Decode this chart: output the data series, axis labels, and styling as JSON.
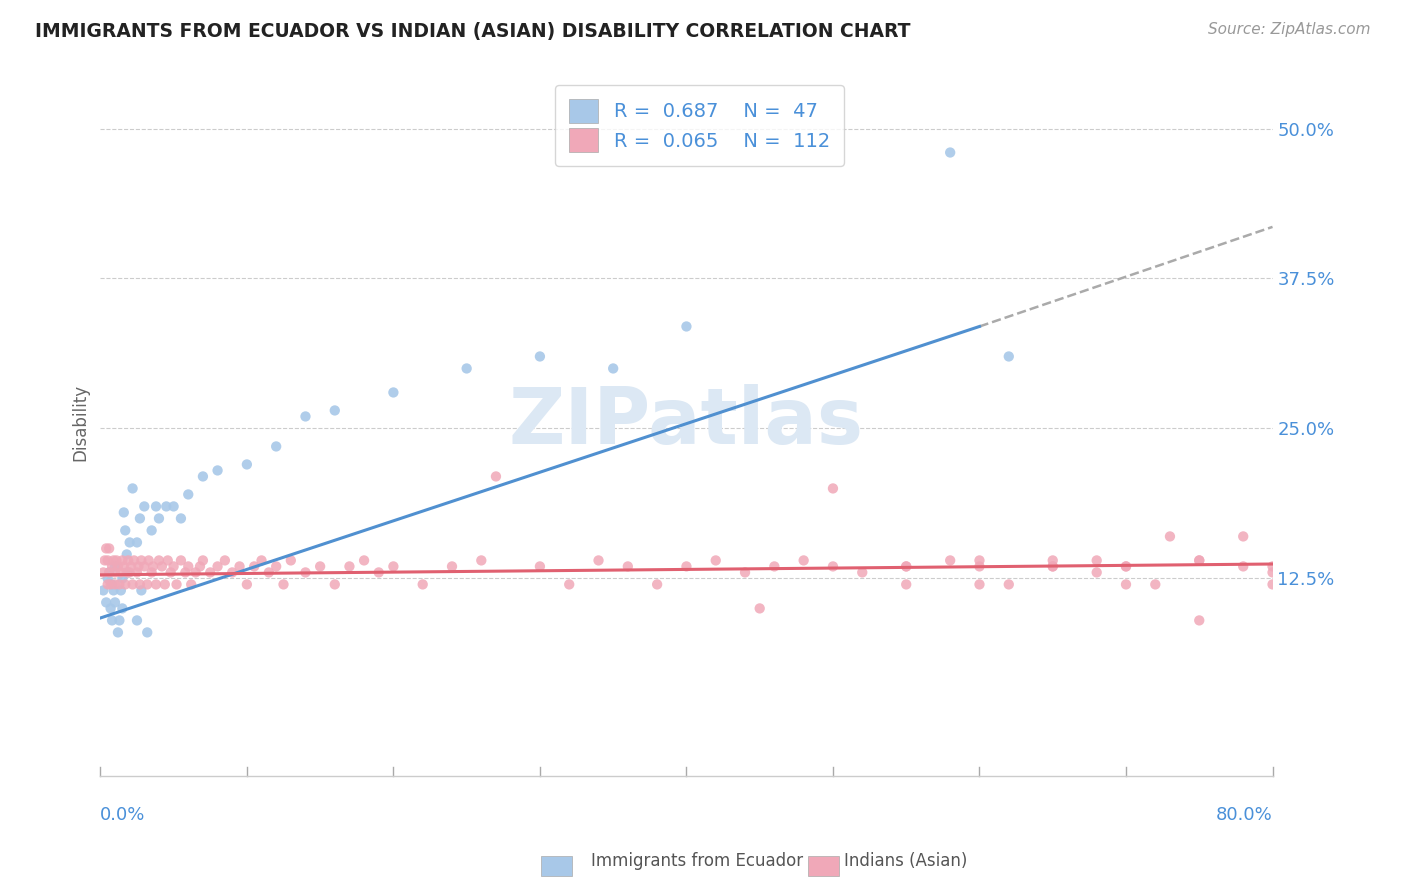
{
  "title": "IMMIGRANTS FROM ECUADOR VS INDIAN (ASIAN) DISABILITY CORRELATION CHART",
  "source_text": "Source: ZipAtlas.com",
  "ylabel": "Disability",
  "xlim": [
    0.0,
    0.8
  ],
  "ylim": [
    -0.04,
    0.55
  ],
  "yticks": [
    0.125,
    0.25,
    0.375,
    0.5
  ],
  "ytick_labels": [
    "12.5%",
    "25.0%",
    "37.5%",
    "50.0%"
  ],
  "color_blue": "#a8c8e8",
  "color_pink": "#f0a8b8",
  "color_blue_line": "#5090d0",
  "color_pink_line": "#e06070",
  "color_dash": "#aaaaaa",
  "watermark": "ZIPatlas",
  "ecuador_x": [
    0.002,
    0.004,
    0.005,
    0.006,
    0.007,
    0.008,
    0.008,
    0.009,
    0.01,
    0.01,
    0.012,
    0.013,
    0.014,
    0.015,
    0.015,
    0.016,
    0.017,
    0.018,
    0.019,
    0.02,
    0.022,
    0.025,
    0.025,
    0.027,
    0.028,
    0.03,
    0.032,
    0.035,
    0.038,
    0.04,
    0.045,
    0.05,
    0.055,
    0.06,
    0.07,
    0.08,
    0.1,
    0.12,
    0.14,
    0.16,
    0.2,
    0.25,
    0.3,
    0.35,
    0.4,
    0.58,
    0.62
  ],
  "ecuador_y": [
    0.115,
    0.105,
    0.125,
    0.13,
    0.1,
    0.09,
    0.12,
    0.115,
    0.135,
    0.105,
    0.08,
    0.09,
    0.115,
    0.125,
    0.1,
    0.18,
    0.165,
    0.145,
    0.13,
    0.155,
    0.2,
    0.155,
    0.09,
    0.175,
    0.115,
    0.185,
    0.08,
    0.165,
    0.185,
    0.175,
    0.185,
    0.185,
    0.175,
    0.195,
    0.21,
    0.215,
    0.22,
    0.235,
    0.26,
    0.265,
    0.28,
    0.3,
    0.31,
    0.3,
    0.335,
    0.48,
    0.31
  ],
  "indian_x": [
    0.002,
    0.003,
    0.004,
    0.005,
    0.005,
    0.006,
    0.006,
    0.007,
    0.008,
    0.009,
    0.01,
    0.01,
    0.011,
    0.012,
    0.013,
    0.014,
    0.015,
    0.016,
    0.017,
    0.018,
    0.019,
    0.02,
    0.021,
    0.022,
    0.023,
    0.025,
    0.026,
    0.027,
    0.028,
    0.03,
    0.032,
    0.033,
    0.035,
    0.036,
    0.038,
    0.04,
    0.042,
    0.044,
    0.046,
    0.048,
    0.05,
    0.052,
    0.055,
    0.058,
    0.06,
    0.062,
    0.065,
    0.068,
    0.07,
    0.075,
    0.08,
    0.085,
    0.09,
    0.095,
    0.1,
    0.105,
    0.11,
    0.115,
    0.12,
    0.125,
    0.13,
    0.14,
    0.15,
    0.16,
    0.17,
    0.18,
    0.19,
    0.2,
    0.22,
    0.24,
    0.26,
    0.27,
    0.3,
    0.32,
    0.34,
    0.36,
    0.38,
    0.4,
    0.42,
    0.44,
    0.46,
    0.48,
    0.5,
    0.52,
    0.55,
    0.58,
    0.6,
    0.62,
    0.65,
    0.68,
    0.7,
    0.72,
    0.75,
    0.78,
    0.8,
    0.45,
    0.5,
    0.55,
    0.6,
    0.65,
    0.7,
    0.75,
    0.8,
    0.55,
    0.6,
    0.65,
    0.7,
    0.75,
    0.8,
    0.68,
    0.73,
    0.78
  ],
  "indian_y": [
    0.13,
    0.14,
    0.15,
    0.12,
    0.14,
    0.13,
    0.15,
    0.12,
    0.135,
    0.14,
    0.13,
    0.12,
    0.14,
    0.135,
    0.12,
    0.13,
    0.14,
    0.135,
    0.12,
    0.13,
    0.14,
    0.13,
    0.135,
    0.12,
    0.14,
    0.13,
    0.135,
    0.12,
    0.14,
    0.135,
    0.12,
    0.14,
    0.13,
    0.135,
    0.12,
    0.14,
    0.135,
    0.12,
    0.14,
    0.13,
    0.135,
    0.12,
    0.14,
    0.13,
    0.135,
    0.12,
    0.13,
    0.135,
    0.14,
    0.13,
    0.135,
    0.14,
    0.13,
    0.135,
    0.12,
    0.135,
    0.14,
    0.13,
    0.135,
    0.12,
    0.14,
    0.13,
    0.135,
    0.12,
    0.135,
    0.14,
    0.13,
    0.135,
    0.12,
    0.135,
    0.14,
    0.21,
    0.135,
    0.12,
    0.14,
    0.135,
    0.12,
    0.135,
    0.14,
    0.13,
    0.135,
    0.14,
    0.2,
    0.13,
    0.135,
    0.14,
    0.135,
    0.12,
    0.135,
    0.14,
    0.135,
    0.12,
    0.14,
    0.16,
    0.135,
    0.1,
    0.135,
    0.12,
    0.14,
    0.135,
    0.12,
    0.14,
    0.13,
    0.135,
    0.12,
    0.14,
    0.135,
    0.09,
    0.12,
    0.13,
    0.16,
    0.135
  ],
  "blue_line_x0": 0.0,
  "blue_line_y0": 0.092,
  "blue_line_x1": 0.6,
  "blue_line_y1": 0.335,
  "dash_line_x0": 0.6,
  "dash_line_y0": 0.335,
  "dash_line_x1": 0.8,
  "dash_line_y1": 0.418,
  "pink_line_x0": 0.0,
  "pink_line_y0": 0.128,
  "pink_line_x1": 0.8,
  "pink_line_y1": 0.137
}
